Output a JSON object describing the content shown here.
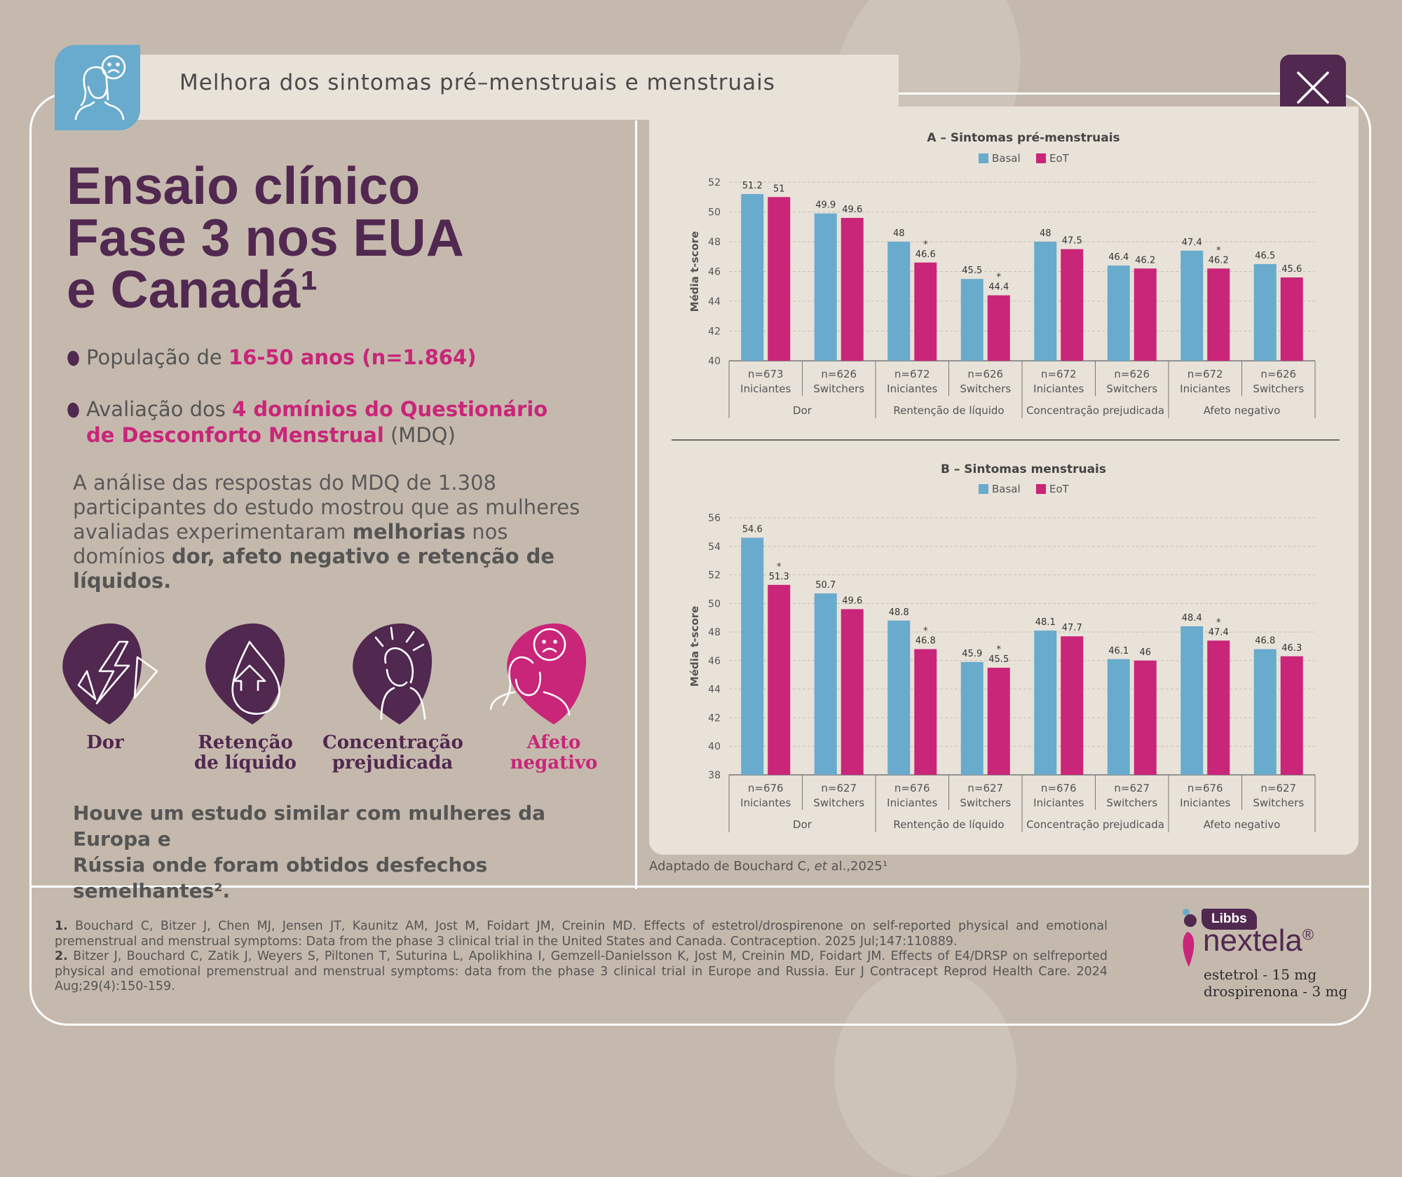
{
  "header": {
    "title": "Melhora dos sintomas pré–menstruais e menstruais"
  },
  "headline": {
    "line1": "Ensaio clínico",
    "line2": "Fase 3 nos EUA",
    "line3": "e Canadá¹"
  },
  "bullets": [
    {
      "pre": "População de ",
      "highlight": "16-50 anos (n=1.864)",
      "post": ""
    },
    {
      "pre": "Avaliação dos ",
      "highlight1": "4 domínios do Questionário",
      "highlight2": "de Desconforto Menstrual",
      "post": " (MDQ)"
    }
  ],
  "paragraph": {
    "l1": "A análise das respostas do MDQ de 1.308",
    "l2": "participantes do estudo mostrou que as mulheres",
    "l3a": "avaliadas experimentaram ",
    "l3b": "melhorias",
    "l3c": " nos",
    "l4a": "domínios ",
    "l4b": "dor, afeto negativo e retenção de",
    "l5": "líquidos."
  },
  "domains": [
    {
      "l1": "Dor",
      "l2": "",
      "icon": "lightning-icon",
      "color": "#512850"
    },
    {
      "l1": "Retenção",
      "l2": "de líquido",
      "icon": "water-drop-icon",
      "color": "#512850"
    },
    {
      "l1": "Concentração",
      "l2": "prejudicada",
      "icon": "headache-icon",
      "color": "#512850"
    },
    {
      "l1": "Afeto",
      "l2": "negativo",
      "icon": "sad-woman-icon",
      "color": "#c92579"
    }
  ],
  "bottom_note": {
    "l1": "Houve um estudo similar com mulheres da Europa e",
    "l2": "Rússia onde foram obtidos desfechos semelhantes²."
  },
  "source": {
    "pre": "Adaptado de Bouchard C, ",
    "italic": "et",
    "post": " al.,2025¹"
  },
  "references": [
    {
      "num": "1.",
      "text": " Bouchard C, Bitzer J, Chen MJ, Jensen JT, Kaunitz AM, Jost M, Foidart JM, Creinin MD. Effects of estetrol/drospirenone on self-reported physical and emotional premenstrual and menstrual symptoms: Data from the phase 3 clinical trial in the United States and Canada. Contraception. 2025 Jul;147:110889."
    },
    {
      "num": "2.",
      "text": " Bitzer J, Bouchard C, Zatik J, Weyers S, Piltonen T, Suturina L, Apolikhina I, Gemzell-Danielsson K, Jost M, Creinin MD, Foidart JM. Effects of E4/DRSP on selfreported physical and emotional premenstrual and menstrual symptoms: data from the phase 3 clinical trial in Europe and Russia. Eur J Contracept Reprod Health Care. 2024 Aug;29(4):150-159."
    }
  ],
  "brand": {
    "badge": "Libbs",
    "name": "nextela",
    "mark": "®",
    "line1": "estetrol - 15 mg",
    "line2": "drospirenona - 3 mg"
  },
  "colors": {
    "basal": "#69abcd",
    "eot": "#c92579",
    "purple": "#512850"
  },
  "chart_data": [
    {
      "type": "bar",
      "title": "A – Sintomas pré-menstruais",
      "ylabel": "Média t-score",
      "ylim": [
        40,
        52
      ],
      "yticks": [
        40,
        42,
        44,
        46,
        48,
        50,
        52
      ],
      "legend": "top-center",
      "grid": true,
      "categories": [
        "n=673 Iniciantes",
        "n=626 Switchers",
        "n=672 Iniciantes",
        "n=626 Switchers",
        "n=672 Iniciantes",
        "n=626 Switchers",
        "n=672 Iniciantes",
        "n=626 Switchers"
      ],
      "category_lines": [
        [
          "n=673",
          "Iniciantes"
        ],
        [
          "n=626",
          "Switchers"
        ],
        [
          "n=672",
          "Iniciantes"
        ],
        [
          "n=626",
          "Switchers"
        ],
        [
          "n=672",
          "Iniciantes"
        ],
        [
          "n=626",
          "Switchers"
        ],
        [
          "n=672",
          "Iniciantes"
        ],
        [
          "n=626",
          "Switchers"
        ]
      ],
      "groups": [
        "Dor",
        "Rentenção de líquido",
        "Concentração prejudicada",
        "Afeto negativo"
      ],
      "series": [
        {
          "name": "Basal",
          "values": [
            51.2,
            49.9,
            48,
            45.5,
            48,
            46.4,
            47.4,
            46.5
          ]
        },
        {
          "name": "EoT",
          "values": [
            51,
            49.6,
            46.6,
            44.4,
            47.5,
            46.2,
            46.2,
            45.6
          ],
          "significant": [
            false,
            false,
            true,
            true,
            false,
            false,
            true,
            false
          ]
        }
      ]
    },
    {
      "type": "bar",
      "title": "B – Sintomas menstruais",
      "ylabel": "Média t-score",
      "ylim": [
        38,
        56
      ],
      "yticks": [
        38,
        40,
        42,
        44,
        46,
        48,
        50,
        52,
        54,
        56
      ],
      "legend": "top-center",
      "grid": true,
      "categories": [
        "n=676 Iniciantes",
        "n=627 Switchers",
        "n=676 Iniciantes",
        "n=627 Switchers",
        "n=676 Iniciantes",
        "n=627 Switchers",
        "n=676 Iniciantes",
        "n=627 Switchers"
      ],
      "category_lines": [
        [
          "n=676",
          "Iniciantes"
        ],
        [
          "n=627",
          "Switchers"
        ],
        [
          "n=676",
          "Iniciantes"
        ],
        [
          "n=627",
          "Switchers"
        ],
        [
          "n=676",
          "Iniciantes"
        ],
        [
          "n=627",
          "Switchers"
        ],
        [
          "n=676",
          "Iniciantes"
        ],
        [
          "n=627",
          "Switchers"
        ]
      ],
      "groups": [
        "Dor",
        "Rentenção de líquido",
        "Concentração prejudicada",
        "Afeto negativo"
      ],
      "series": [
        {
          "name": "Basal",
          "values": [
            54.6,
            50.7,
            48.8,
            45.9,
            48.1,
            46.1,
            48.4,
            46.8
          ]
        },
        {
          "name": "EoT",
          "values": [
            51.3,
            49.6,
            46.8,
            45.5,
            47.7,
            46,
            47.4,
            46.3
          ],
          "significant": [
            true,
            false,
            true,
            true,
            false,
            false,
            true,
            false
          ]
        }
      ]
    }
  ]
}
